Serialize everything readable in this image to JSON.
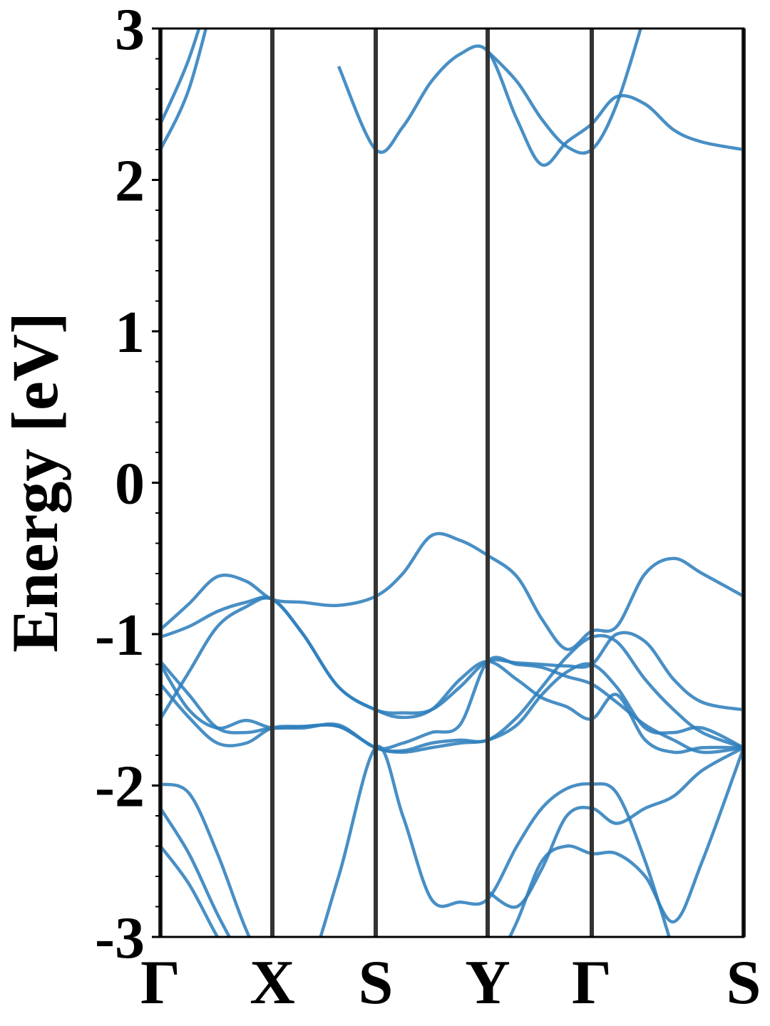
{
  "chart_data": {
    "type": "line",
    "ylabel": "Energy [eV]",
    "x": [
      0,
      0.4,
      0.8,
      1.2,
      1.57,
      2.0,
      2.5,
      3.02,
      3.4,
      3.8,
      4.2,
      4.59,
      5.0,
      5.35,
      5.7,
      6.05,
      6.4,
      6.8,
      7.2,
      7.6,
      8.18
    ],
    "xlim": [
      0,
      8.18
    ],
    "xticks": [
      {
        "value": 0,
        "label": "Γ"
      },
      {
        "value": 1.57,
        "label": "X"
      },
      {
        "value": 3.02,
        "label": "S"
      },
      {
        "value": 4.59,
        "label": "Y"
      },
      {
        "value": 6.05,
        "label": "Γ"
      },
      {
        "value": 8.18,
        "label": "S"
      }
    ],
    "ylim": [
      -3,
      3
    ],
    "yticks": [
      -3,
      -2,
      -1,
      0,
      1,
      2,
      3
    ],
    "yminor_ticks": [
      -2.8,
      -2.6,
      -2.4,
      -2.2,
      -1.8,
      -1.6,
      -1.4,
      -1.2,
      -0.8,
      -0.6,
      -0.4,
      -0.2,
      0.2,
      0.4,
      0.6,
      0.8,
      1.2,
      1.4,
      1.6,
      1.8,
      2.2,
      2.4,
      2.6,
      2.8
    ],
    "line_color": "#2f7fbd",
    "separator_color": "#333333",
    "series": [
      {
        "values": [
          -0.97,
          -0.8,
          -0.62,
          -0.65,
          -0.77,
          -0.79,
          -0.81,
          -0.75,
          -0.6,
          -0.35,
          -0.38,
          -0.48,
          -0.62,
          -0.9,
          -1.1,
          -0.98,
          -0.95,
          -0.6,
          -0.5,
          -0.6,
          -0.75
        ]
      },
      {
        "values": [
          -1.02,
          -0.95,
          -0.85,
          -0.79,
          -0.77,
          -1.0,
          -1.35,
          -1.5,
          -1.52,
          -1.5,
          -1.35,
          -1.18,
          -1.19,
          -1.2,
          -1.21,
          -1.2,
          -1.0,
          -1.05,
          -1.3,
          -1.45,
          -1.5
        ]
      },
      {
        "values": [
          -1.2,
          -1.5,
          -1.62,
          -1.57,
          -1.62,
          -1.61,
          -1.61,
          -1.75,
          -1.77,
          -1.72,
          -1.7,
          -1.7,
          -1.55,
          -1.35,
          -1.15,
          -1.02,
          -1.05,
          -1.3,
          -1.5,
          -1.65,
          -1.75
        ]
      },
      {
        "values": [
          -1.33,
          -1.55,
          -1.72,
          -1.72,
          -1.62,
          -1.61,
          -1.61,
          -1.75,
          -1.78,
          -1.75,
          -1.72,
          -1.7,
          -1.6,
          -1.4,
          -1.25,
          -1.2,
          -1.35,
          -1.62,
          -1.65,
          -1.62,
          -1.75
        ]
      },
      {
        "values": [
          -1.18,
          -1.4,
          -1.62,
          -1.65,
          -1.62,
          -1.62,
          -1.6,
          -1.75,
          -1.72,
          -1.65,
          -1.6,
          -1.18,
          -1.2,
          -1.22,
          -1.28,
          -1.33,
          -1.45,
          -1.6,
          -1.7,
          -1.78,
          -1.75
        ]
      },
      {
        "values": [
          -1.56,
          -1.25,
          -0.95,
          -0.82,
          -0.77,
          -1.0,
          -1.35,
          -1.5,
          -1.55,
          -1.5,
          -1.3,
          -1.18,
          -1.3,
          -1.42,
          -1.48,
          -1.56,
          -1.4,
          -1.7,
          -1.78,
          -1.75,
          -1.75
        ]
      },
      {
        "values": [
          -1.99,
          -2.05,
          -2.45,
          -2.95,
          -3.3,
          -3.3,
          -2.6,
          -1.75,
          -2.2,
          -2.75,
          -2.77,
          -2.75,
          -2.4,
          -2.15,
          -2.02,
          -1.99,
          -2.05,
          -2.5,
          -3.1,
          null,
          null
        ]
      },
      {
        "values": [
          -2.15,
          -2.45,
          -2.85,
          -3.2,
          null,
          null,
          null,
          null,
          null,
          null,
          null,
          -2.7,
          -2.8,
          -2.55,
          -2.2,
          -2.15,
          -2.25,
          -2.15,
          -2.07,
          -1.9,
          -1.75
        ]
      },
      {
        "values": [
          -2.4,
          -2.65,
          -3.0,
          -3.3,
          null,
          null,
          null,
          null,
          null,
          null,
          null,
          -3.3,
          -2.9,
          -2.5,
          -2.4,
          -2.45,
          -2.45,
          -2.6,
          -2.9,
          -2.5,
          -1.75
        ]
      },
      {
        "values": [
          2.2,
          2.6,
          3.3,
          null,
          null,
          null,
          2.75,
          2.2,
          2.35,
          2.65,
          2.83,
          2.85,
          2.4,
          2.1,
          2.25,
          2.37,
          2.55,
          2.5,
          2.33,
          2.25,
          2.2
        ]
      },
      {
        "values": [
          2.37,
          2.8,
          3.4,
          null,
          null,
          null,
          null,
          null,
          null,
          null,
          null,
          2.85,
          2.65,
          2.4,
          2.22,
          2.2,
          2.5,
          3.1,
          null,
          null,
          null
        ]
      }
    ]
  }
}
